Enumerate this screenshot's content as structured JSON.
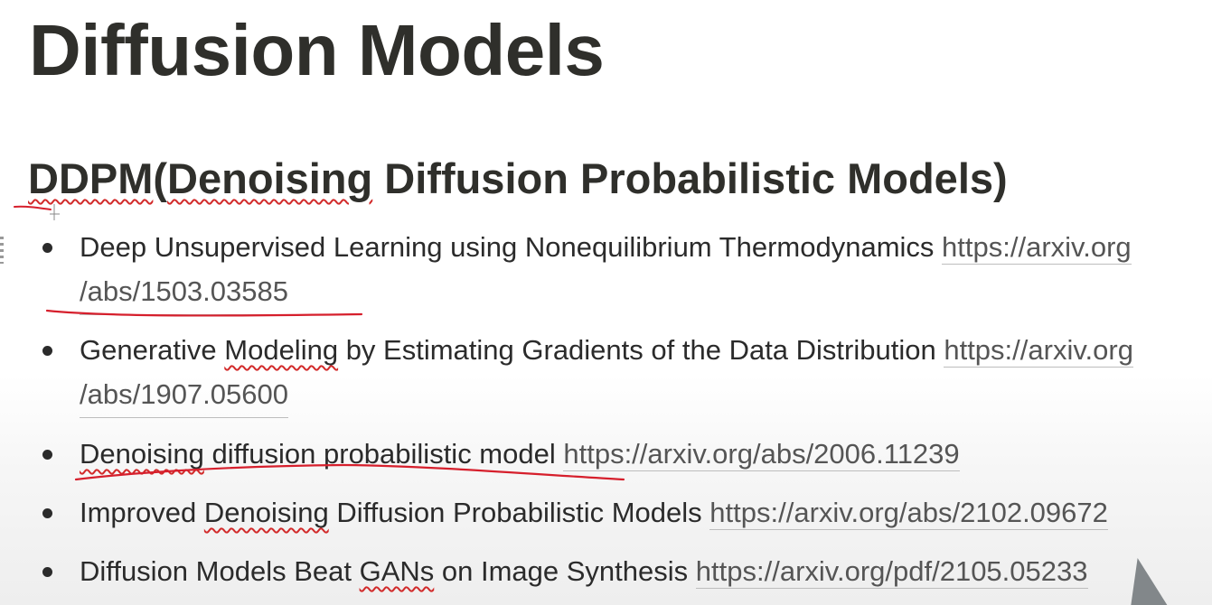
{
  "slide": {
    "title": "Diffusion Models",
    "subtitle_abbrev": "DDPM",
    "subtitle_open": "(",
    "subtitle_word": "Denoising",
    "subtitle_rest": " Diffusion Probabilistic Models)"
  },
  "papers": [
    {
      "pre": "Deep Unsupervised Learning using Nonequilibrium Thermodynamics ",
      "squiggle": "",
      "post": "",
      "link_line1": "https://arxiv.org",
      "link_line2": "/abs/1503.03585"
    },
    {
      "pre": "Generative ",
      "squiggle": "Modeling",
      "post": " by Estimating Gradients of the Data Distribution  ",
      "link_line1": "https://arxiv.org",
      "link_line2": "/abs/1907.05600"
    },
    {
      "pre": "",
      "squiggle": "Denoising",
      "post": " diffusion probabilistic model ",
      "link_line1": "https://arxiv.org/abs/2006.11239",
      "link_line2": ""
    },
    {
      "pre": "Improved ",
      "squiggle": "Denoising",
      "post": " Diffusion Probabilistic Models ",
      "link_line1": "https://arxiv.org/abs/2102.09672",
      "link_line2": ""
    },
    {
      "pre": "Diffusion Models Beat ",
      "squiggle": "GANs",
      "post": " on Image Synthesis ",
      "link_line1": "https://arxiv.org/pdf/2105.05233",
      "link_line2": ""
    }
  ],
  "colors": {
    "text": "#2f2f2b",
    "link": "#555555",
    "spellcheck_squiggle": "#d22b2b",
    "annotation_ink": "#d61f2c"
  },
  "icons": {
    "cursor": "pointer-arrow-icon",
    "bullet": "bullet-dot-icon"
  }
}
